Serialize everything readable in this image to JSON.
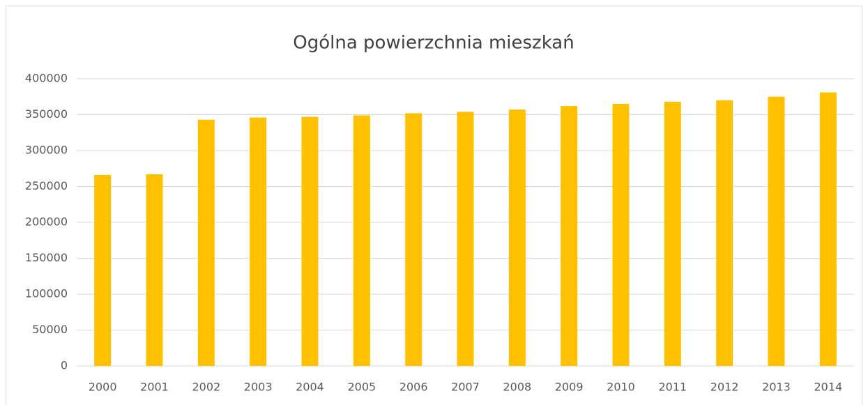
{
  "chart_data": {
    "type": "bar",
    "title": "Ogólna powierzchnia mieszkań",
    "categories": [
      "2000",
      "2001",
      "2002",
      "2003",
      "2004",
      "2005",
      "2006",
      "2007",
      "2008",
      "2009",
      "2010",
      "2011",
      "2012",
      "2013",
      "2014"
    ],
    "values": [
      266000,
      267000,
      343000,
      346000,
      347000,
      349000,
      352000,
      354000,
      357000,
      362000,
      365000,
      368000,
      370000,
      375000,
      381000
    ],
    "color": "#ffc000",
    "ylim": [
      0,
      400000
    ],
    "yticks": [
      0,
      50000,
      100000,
      150000,
      200000,
      250000,
      300000,
      350000,
      400000
    ],
    "grid": true
  }
}
